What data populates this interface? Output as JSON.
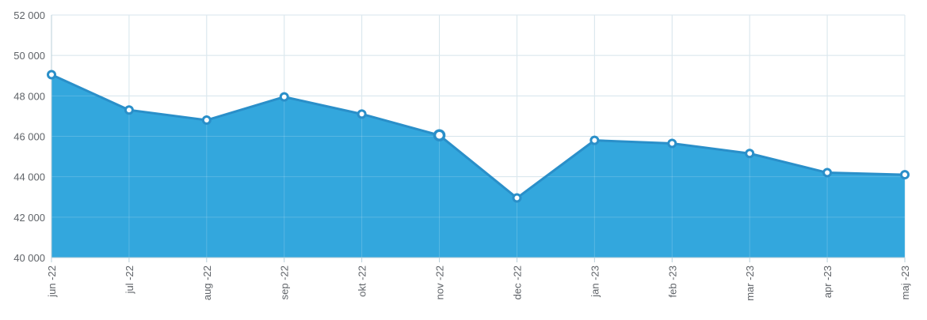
{
  "colors": {
    "fill": "#33a7dd",
    "line": "#2a8fc9",
    "grid": "#cfe0e8",
    "axis": "#b8cfd9",
    "text": "#5f6368",
    "marker_fill": "#ffffff"
  },
  "chart_data": {
    "type": "area",
    "title": "",
    "xlabel": "",
    "ylabel": "",
    "categories": [
      "jun -22",
      "jul -22",
      "aug -22",
      "sep -22",
      "okt -22",
      "nov -22",
      "dec -22",
      "jan -23",
      "feb -23",
      "mar -23",
      "apr -23",
      "maj -23"
    ],
    "series": [
      {
        "values": [
          49050,
          47300,
          46800,
          47950,
          47100,
          46050,
          42950,
          45800,
          45650,
          45150,
          44200,
          44100
        ]
      }
    ],
    "ylim": [
      40000,
      52000
    ],
    "yticks": [
      40000,
      42000,
      44000,
      46000,
      48000,
      50000,
      52000
    ],
    "ytick_labels": [
      "40 000",
      "42 000",
      "44 000",
      "46 000",
      "48 000",
      "50 000",
      "52 000"
    ],
    "grid": true,
    "legend": "none",
    "highlighted_category": "nov -22"
  }
}
